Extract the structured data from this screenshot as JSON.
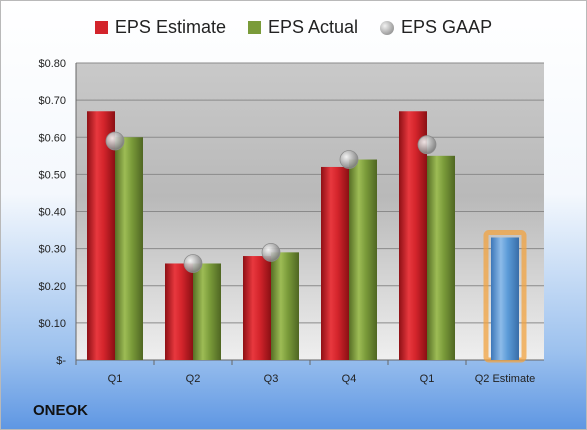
{
  "chart_data": {
    "type": "bar",
    "categories": [
      "Q1",
      "Q2",
      "Q3",
      "Q4",
      "Q1",
      "Q2 Estimate"
    ],
    "series": [
      {
        "name": "EPS Estimate",
        "values": [
          0.67,
          0.26,
          0.28,
          0.52,
          0.67,
          null
        ],
        "color": "#d3242b"
      },
      {
        "name": "EPS Actual",
        "values": [
          0.6,
          0.26,
          0.29,
          0.54,
          0.55,
          0.33
        ],
        "color": "#7a9b3a",
        "last_bar_color": "#5b9bd8",
        "last_bar_glow": "#f2a340"
      },
      {
        "name": "EPS GAAP",
        "values": [
          0.59,
          0.26,
          0.29,
          0.54,
          0.58,
          null
        ],
        "marker": "circle"
      }
    ],
    "ylim": [
      0,
      0.8
    ],
    "ytick_labels": [
      "$-",
      "$0.10",
      "$0.20",
      "$0.30",
      "$0.40",
      "$0.50",
      "$0.60",
      "$0.70",
      "$0.80"
    ],
    "grid": true,
    "legend_position": "top",
    "company": "ONEOK"
  }
}
